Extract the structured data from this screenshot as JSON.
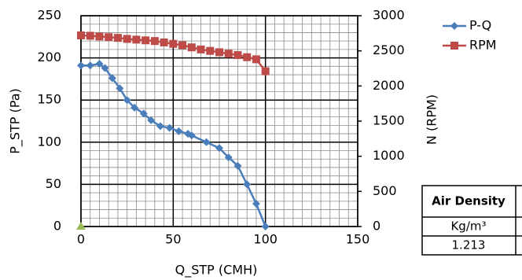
{
  "chart_data": {
    "type": "line",
    "xlabel": "Q_STP (CMH)",
    "ylabel": "P_STP (Pa)",
    "y2label": "N (RPM)",
    "xlim": [
      0,
      150
    ],
    "xticks": [
      0,
      50,
      100,
      150
    ],
    "ylim": [
      0,
      250
    ],
    "yticks": [
      0,
      50,
      100,
      150,
      200,
      250
    ],
    "y2lim": [
      0,
      3000
    ],
    "y2ticks": [
      0,
      500,
      1000,
      1500,
      2000,
      2500,
      3000
    ],
    "grid": true,
    "legend": "right",
    "series": [
      {
        "name": "P-Q",
        "color": "#4a7ebb",
        "marker": "diamond",
        "x": [
          0,
          5,
          10,
          13,
          17,
          21,
          25,
          29,
          34,
          38,
          43,
          48,
          53,
          58,
          60,
          68,
          75,
          80,
          85,
          90,
          95,
          100
        ],
        "values": [
          191,
          191,
          193,
          188,
          176,
          164,
          150,
          141,
          134,
          126,
          119,
          117,
          113,
          110,
          108,
          100,
          93,
          82,
          72,
          50,
          27,
          0
        ]
      },
      {
        "name": "RPM",
        "color": "#be4b48",
        "marker": "square",
        "axis": "y2",
        "x": [
          0,
          5,
          10,
          15,
          20,
          25,
          30,
          35,
          40,
          45,
          50,
          55,
          60,
          65,
          70,
          75,
          80,
          85,
          90,
          95,
          100
        ],
        "values": [
          2720,
          2715,
          2705,
          2695,
          2685,
          2670,
          2660,
          2650,
          2640,
          2620,
          2600,
          2580,
          2550,
          2520,
          2500,
          2480,
          2460,
          2440,
          2410,
          2380,
          2210
        ]
      },
      {
        "color": "#9bbb59",
        "marker": "triangle",
        "x": [
          0
        ],
        "values": [
          0
        ]
      }
    ]
  },
  "table": {
    "rows": [
      [
        "Air Density"
      ],
      [
        "Kg/m³"
      ],
      [
        "1.213"
      ]
    ]
  }
}
